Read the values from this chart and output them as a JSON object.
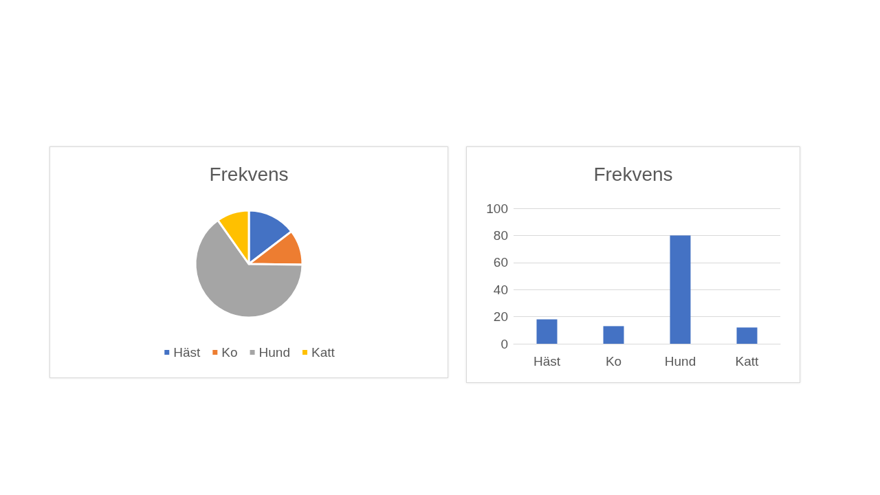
{
  "chart_data": [
    {
      "type": "pie",
      "title": "Frekvens",
      "categories": [
        "Häst",
        "Ko",
        "Hund",
        "Katt"
      ],
      "values": [
        14.6,
        10.6,
        65.0,
        9.8
      ],
      "colors": [
        "#4472c4",
        "#ed7d31",
        "#a5a5a5",
        "#ffc000"
      ],
      "legend": "bottom"
    },
    {
      "type": "bar",
      "title": "Frekvens",
      "categories": [
        "Häst",
        "Ko",
        "Hund",
        "Katt"
      ],
      "values": [
        18,
        13,
        80,
        12
      ],
      "color": "#4472c4",
      "ylim": [
        0,
        100
      ],
      "yticks": [
        0,
        20,
        40,
        60,
        80,
        100
      ],
      "grid": "y",
      "legend": false
    }
  ]
}
